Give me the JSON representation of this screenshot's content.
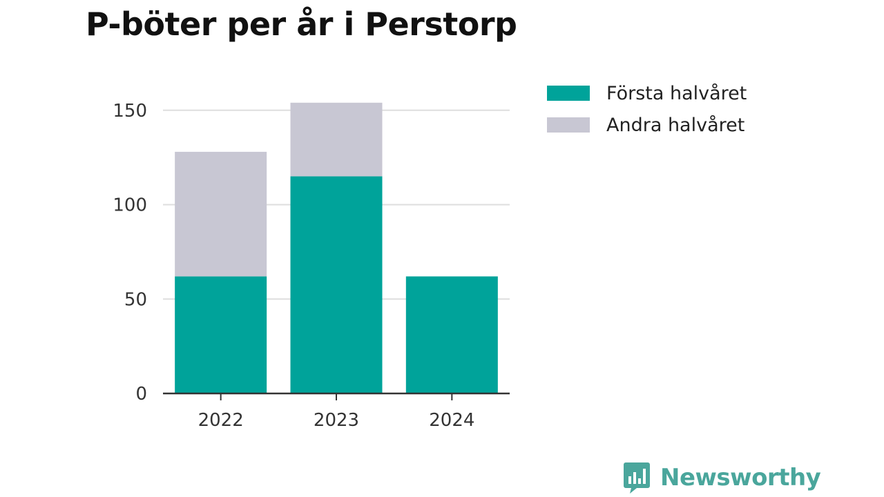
{
  "title": "P-böter per år i Perstorp",
  "legend": {
    "items": [
      {
        "label": "Första halvåret",
        "color": "#00a39a"
      },
      {
        "label": "Andra halvåret",
        "color": "#c8c7d3"
      }
    ]
  },
  "logo": {
    "text": "Newsworthy",
    "icon": "bar-chart-speech-bubble-icon",
    "color": "#4aa69c"
  },
  "chart_data": {
    "type": "bar",
    "stacked": true,
    "title": "P-böter per år i Perstorp",
    "xlabel": "",
    "ylabel": "",
    "categories": [
      "2022",
      "2023",
      "2024"
    ],
    "series": [
      {
        "name": "Första halvåret",
        "values": [
          62,
          115,
          62
        ],
        "color": "#00a39a"
      },
      {
        "name": "Andra halvåret",
        "values": [
          66,
          39,
          0
        ],
        "color": "#c8c7d3"
      }
    ],
    "ylim": [
      0,
      155
    ],
    "yticks": [
      0,
      50,
      100,
      150
    ],
    "grid": true,
    "legend_position": "top-right"
  }
}
